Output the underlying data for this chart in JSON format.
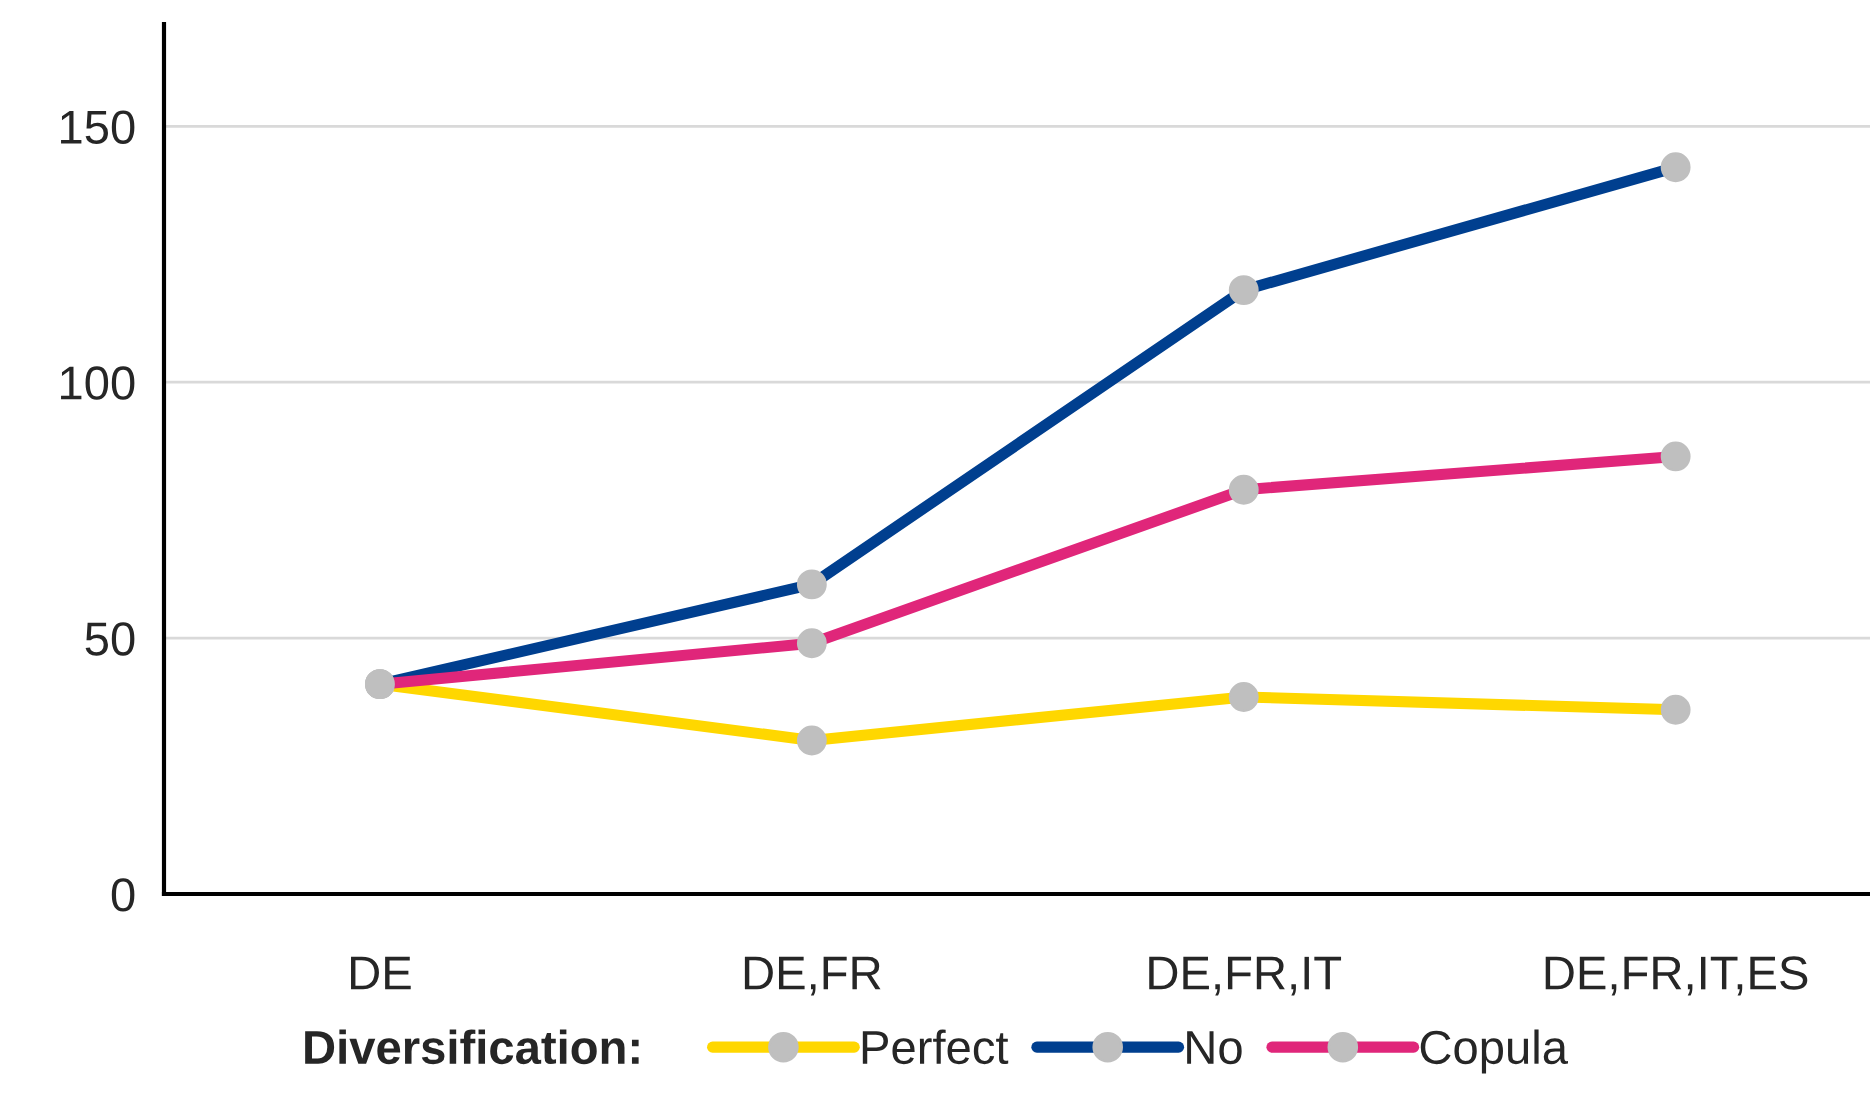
{
  "chart_data": {
    "type": "line",
    "categories": [
      "DE",
      "DE,FR",
      "DE,FR,IT",
      "DE,FR,IT,ES"
    ],
    "series": [
      {
        "name": "Perfect",
        "color": "#ffd700",
        "values": [
          41,
          30,
          38.5,
          36
        ]
      },
      {
        "name": "No",
        "color": "#003f8f",
        "values": [
          41,
          60.5,
          118,
          142
        ]
      },
      {
        "name": "Copula",
        "color": "#e0267a",
        "values": [
          41,
          49,
          79,
          85.5
        ]
      }
    ],
    "legend_title": "Diversification:",
    "legend": "bottom",
    "ylim": [
      0,
      170
    ],
    "yticks": [
      0,
      50,
      100,
      150
    ],
    "grid": "y",
    "marker": "circle",
    "line_style": "solid"
  }
}
